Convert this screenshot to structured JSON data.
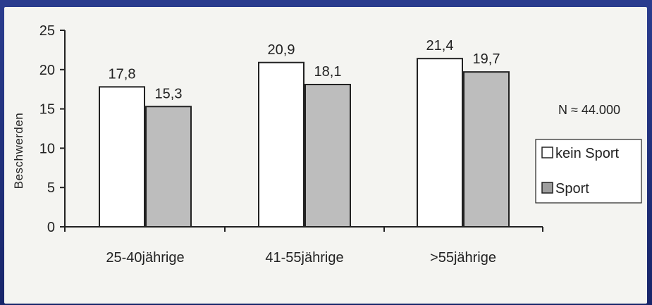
{
  "chart_data": {
    "type": "bar",
    "title": "",
    "xlabel": "",
    "ylabel": "Beschwerden",
    "ylim": [
      0,
      25
    ],
    "yticks": [
      0,
      5,
      10,
      15,
      20,
      25
    ],
    "categories": [
      "25-40jährige",
      "41-55jährige",
      ">55jährige"
    ],
    "series": [
      {
        "name": "kein Sport",
        "values": [
          17.8,
          20.9,
          21.4
        ],
        "labels": [
          "17,8",
          "20,9",
          "21,4"
        ],
        "color": "#ffffff"
      },
      {
        "name": "Sport",
        "values": [
          15.3,
          18.1,
          19.7
        ],
        "labels": [
          "15,3",
          "18,1",
          "19,7"
        ],
        "color": "#bdbdbd"
      }
    ],
    "annotation": "N ≈ 44.000",
    "legend_position": "right",
    "grid": false
  },
  "colors": {
    "background": "#1f2f78",
    "paper": "#f4f4f1",
    "axis": "#222222",
    "bar_stroke": "#222222"
  }
}
